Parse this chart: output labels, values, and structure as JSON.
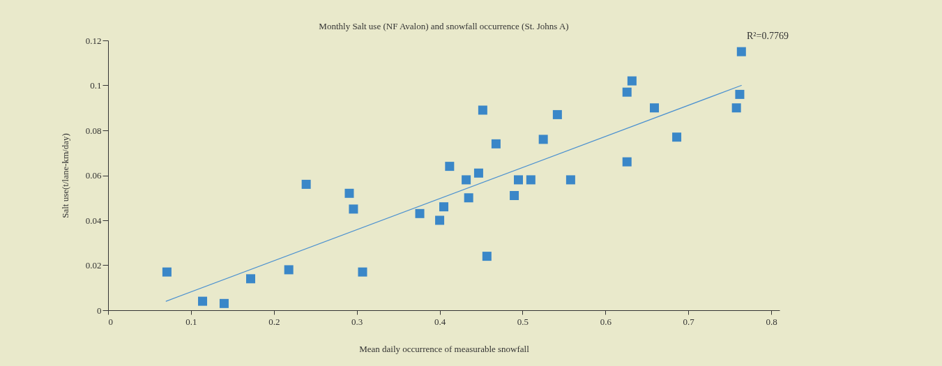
{
  "chart_data": {
    "type": "scatter",
    "title": "Monthly Salt use (NF Avalon) and snowfall occurrence (St. Johns A)",
    "xlabel": "Mean daily occurrence of measurable snowfall",
    "ylabel": "Salt use(t/lane-km/day)",
    "annotations": [
      "R²=0.7769"
    ],
    "xlim": [
      0,
      0.81
    ],
    "xticks": [
      0,
      0.1,
      0.2,
      0.3,
      0.4,
      0.5,
      0.6,
      0.7,
      0.8
    ],
    "ylim": [
      0,
      0.12
    ],
    "yticks": [
      0,
      0.02,
      0.04,
      0.06,
      0.08,
      0.1,
      0.12
    ],
    "grid": false,
    "series": [
      {
        "color": "#3a87c8",
        "marker": "square",
        "x": [
          0.071,
          0.114,
          0.14,
          0.172,
          0.218,
          0.239,
          0.291,
          0.296,
          0.307,
          0.376,
          0.4,
          0.405,
          0.412,
          0.432,
          0.435,
          0.447,
          0.452,
          0.457,
          0.468,
          0.49,
          0.495,
          0.51,
          0.525,
          0.542,
          0.558,
          0.626,
          0.626,
          0.632,
          0.659,
          0.686,
          0.758,
          0.762,
          0.764
        ],
        "values": [
          0.017,
          0.004,
          0.003,
          0.014,
          0.018,
          0.056,
          0.052,
          0.045,
          0.017,
          0.043,
          0.04,
          0.046,
          0.064,
          0.058,
          0.05,
          0.061,
          0.089,
          0.024,
          0.074,
          0.051,
          0.058,
          0.058,
          0.076,
          0.087,
          0.058,
          0.097,
          0.066,
          0.102,
          0.09,
          0.077,
          0.09,
          0.096,
          0.115
        ]
      },
      {
        "type": "line",
        "color": "#4a90d0",
        "line_style": "solid",
        "x": [
          0.07,
          0.764
        ],
        "values": [
          0.004,
          0.1
        ]
      }
    ]
  }
}
